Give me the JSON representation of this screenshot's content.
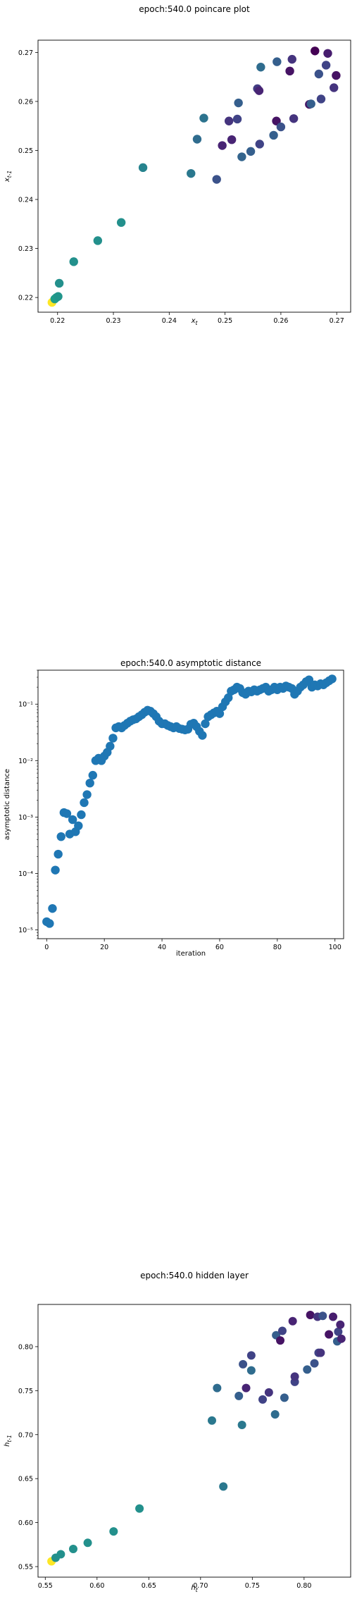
{
  "chart_data": [
    {
      "type": "scatter",
      "title": "epoch:540.0 poincare plot",
      "xlabel": "x_t",
      "ylabel": "x_{t-1}",
      "xlim": [
        0.2165,
        0.2725
      ],
      "ylim": [
        0.217,
        0.2725
      ],
      "log_y": false,
      "xticks": [
        0.22,
        0.23,
        0.24,
        0.25,
        0.26,
        0.27
      ],
      "yticks": [
        0.22,
        0.23,
        0.24,
        0.25,
        0.26,
        0.27
      ],
      "xtick_labels": [
        "0.22",
        "0.23",
        "0.24",
        "0.25",
        "0.26",
        "0.27"
      ],
      "ytick_labels": [
        "0.22",
        "0.23",
        "0.24",
        "0.25",
        "0.26",
        "0.27"
      ],
      "colormap": "viridis",
      "points": [
        {
          "x": 0.219,
          "y": 0.219,
          "c": 1.0
        },
        {
          "x": 0.2195,
          "y": 0.2197,
          "c": 0.55
        },
        {
          "x": 0.2198,
          "y": 0.22,
          "c": 0.55
        },
        {
          "x": 0.2201,
          "y": 0.2202,
          "c": 0.52
        },
        {
          "x": 0.2203,
          "y": 0.2229,
          "c": 0.5
        },
        {
          "x": 0.2229,
          "y": 0.2273,
          "c": 0.5
        },
        {
          "x": 0.2272,
          "y": 0.2316,
          "c": 0.5
        },
        {
          "x": 0.2314,
          "y": 0.2353,
          "c": 0.5
        },
        {
          "x": 0.2353,
          "y": 0.2465,
          "c": 0.45
        },
        {
          "x": 0.2439,
          "y": 0.2453,
          "c": 0.4
        },
        {
          "x": 0.245,
          "y": 0.2523,
          "c": 0.35
        },
        {
          "x": 0.2462,
          "y": 0.2566,
          "c": 0.38
        },
        {
          "x": 0.2485,
          "y": 0.2441,
          "c": 0.25
        },
        {
          "x": 0.2495,
          "y": 0.251,
          "c": 0.1
        },
        {
          "x": 0.2507,
          "y": 0.256,
          "c": 0.15
        },
        {
          "x": 0.2512,
          "y": 0.2522,
          "c": 0.1
        },
        {
          "x": 0.2522,
          "y": 0.2564,
          "c": 0.2
        },
        {
          "x": 0.2524,
          "y": 0.2597,
          "c": 0.3
        },
        {
          "x": 0.253,
          "y": 0.2487,
          "c": 0.32
        },
        {
          "x": 0.2546,
          "y": 0.2498,
          "c": 0.3
        },
        {
          "x": 0.2558,
          "y": 0.2626,
          "c": 0.18
        },
        {
          "x": 0.2561,
          "y": 0.2622,
          "c": 0.1
        },
        {
          "x": 0.2562,
          "y": 0.2513,
          "c": 0.2
        },
        {
          "x": 0.2564,
          "y": 0.267,
          "c": 0.35
        },
        {
          "x": 0.2587,
          "y": 0.2531,
          "c": 0.3
        },
        {
          "x": 0.2592,
          "y": 0.256,
          "c": 0.05
        },
        {
          "x": 0.2593,
          "y": 0.2681,
          "c": 0.3
        },
        {
          "x": 0.26,
          "y": 0.2548,
          "c": 0.25
        },
        {
          "x": 0.2616,
          "y": 0.2662,
          "c": 0.05
        },
        {
          "x": 0.262,
          "y": 0.2686,
          "c": 0.15
        },
        {
          "x": 0.2623,
          "y": 0.2565,
          "c": 0.15
        },
        {
          "x": 0.2651,
          "y": 0.2594,
          "c": 0.05
        },
        {
          "x": 0.2654,
          "y": 0.2595,
          "c": 0.3
        },
        {
          "x": 0.2661,
          "y": 0.2703,
          "c": 0.0
        },
        {
          "x": 0.2668,
          "y": 0.2656,
          "c": 0.25
        },
        {
          "x": 0.2672,
          "y": 0.2605,
          "c": 0.2
        },
        {
          "x": 0.2681,
          "y": 0.2674,
          "c": 0.2
        },
        {
          "x": 0.2684,
          "y": 0.2698,
          "c": 0.08
        },
        {
          "x": 0.2695,
          "y": 0.2628,
          "c": 0.15
        },
        {
          "x": 0.2699,
          "y": 0.2653,
          "c": 0.05
        }
      ]
    },
    {
      "type": "scatter",
      "title": "epoch:540.0 asymptotic distance",
      "xlabel": "iteration",
      "ylabel": "asymptotic distance",
      "xlim": [
        -3,
        103
      ],
      "ylim": [
        7e-06,
        0.4
      ],
      "log_y": true,
      "xticks": [
        0,
        20,
        40,
        60,
        80,
        100
      ],
      "xtick_labels": [
        "0",
        "20",
        "40",
        "60",
        "80",
        "100"
      ],
      "yticks": [
        1e-05,
        0.0001,
        0.001,
        0.01,
        0.1
      ],
      "ytick_labels": [
        "10⁻⁵",
        "10⁻⁴",
        "10⁻³",
        "10⁻²",
        "10⁻¹"
      ],
      "color": "#1f77b4",
      "x": [
        0,
        1,
        2,
        3,
        4,
        5,
        6,
        7,
        8,
        9,
        10,
        11,
        12,
        13,
        14,
        15,
        16,
        17,
        18,
        19,
        20,
        21,
        22,
        23,
        24,
        25,
        26,
        27,
        28,
        29,
        30,
        31,
        32,
        33,
        34,
        35,
        36,
        37,
        38,
        39,
        40,
        41,
        42,
        43,
        44,
        45,
        46,
        47,
        48,
        49,
        50,
        51,
        52,
        53,
        54,
        55,
        56,
        57,
        58,
        59,
        60,
        61,
        62,
        63,
        64,
        65,
        66,
        67,
        68,
        69,
        70,
        71,
        72,
        73,
        74,
        75,
        76,
        77,
        78,
        79,
        80,
        81,
        82,
        83,
        84,
        85,
        86,
        87,
        88,
        89,
        90,
        91,
        92,
        93,
        94,
        95,
        96,
        97,
        98,
        99
      ],
      "y": [
        1.4e-05,
        1.3e-05,
        2.4e-05,
        0.000115,
        0.00022,
        0.00045,
        0.0012,
        0.00115,
        0.0005,
        0.0009,
        0.00055,
        0.0007,
        0.0011,
        0.0018,
        0.0025,
        0.004,
        0.0055,
        0.01,
        0.011,
        0.01,
        0.012,
        0.014,
        0.018,
        0.025,
        0.038,
        0.04,
        0.038,
        0.042,
        0.046,
        0.05,
        0.053,
        0.055,
        0.06,
        0.065,
        0.072,
        0.078,
        0.075,
        0.068,
        0.06,
        0.05,
        0.045,
        0.045,
        0.042,
        0.04,
        0.038,
        0.04,
        0.037,
        0.036,
        0.035,
        0.036,
        0.044,
        0.046,
        0.04,
        0.033,
        0.028,
        0.045,
        0.06,
        0.065,
        0.07,
        0.075,
        0.068,
        0.09,
        0.11,
        0.13,
        0.17,
        0.18,
        0.2,
        0.19,
        0.16,
        0.15,
        0.17,
        0.165,
        0.18,
        0.17,
        0.18,
        0.19,
        0.2,
        0.17,
        0.18,
        0.2,
        0.18,
        0.2,
        0.19,
        0.21,
        0.2,
        0.19,
        0.15,
        0.17,
        0.2,
        0.22,
        0.25,
        0.27,
        0.2,
        0.22,
        0.21,
        0.23,
        0.22,
        0.24,
        0.26,
        0.28
      ]
    },
    {
      "type": "scatter",
      "title": "epoch:540.0 hidden layer",
      "xlabel": "h_t",
      "ylabel": "h_{t-1}",
      "xlim": [
        0.543,
        0.845
      ],
      "ylim": [
        0.538,
        0.848
      ],
      "log_y": false,
      "xticks": [
        0.55,
        0.6,
        0.65,
        0.7,
        0.75,
        0.8
      ],
      "yticks": [
        0.55,
        0.6,
        0.65,
        0.7,
        0.75,
        0.8
      ],
      "xtick_labels": [
        "0.55",
        "0.60",
        "0.65",
        "0.70",
        "0.75",
        "0.80"
      ],
      "ytick_labels": [
        "0.55",
        "0.60",
        "0.65",
        "0.70",
        "0.75",
        "0.80"
      ],
      "colormap": "viridis",
      "points": [
        {
          "x": 0.556,
          "y": 0.556,
          "c": 1.0
        },
        {
          "x": 0.56,
          "y": 0.56,
          "c": 0.5
        },
        {
          "x": 0.565,
          "y": 0.564,
          "c": 0.5
        },
        {
          "x": 0.577,
          "y": 0.57,
          "c": 0.5
        },
        {
          "x": 0.591,
          "y": 0.577,
          "c": 0.5
        },
        {
          "x": 0.616,
          "y": 0.59,
          "c": 0.5
        },
        {
          "x": 0.641,
          "y": 0.616,
          "c": 0.5
        },
        {
          "x": 0.711,
          "y": 0.716,
          "c": 0.4
        },
        {
          "x": 0.716,
          "y": 0.753,
          "c": 0.35
        },
        {
          "x": 0.722,
          "y": 0.641,
          "c": 0.4
        },
        {
          "x": 0.737,
          "y": 0.744,
          "c": 0.3
        },
        {
          "x": 0.74,
          "y": 0.711,
          "c": 0.4
        },
        {
          "x": 0.741,
          "y": 0.78,
          "c": 0.25
        },
        {
          "x": 0.744,
          "y": 0.753,
          "c": 0.1
        },
        {
          "x": 0.749,
          "y": 0.79,
          "c": 0.2
        },
        {
          "x": 0.749,
          "y": 0.773,
          "c": 0.35
        },
        {
          "x": 0.76,
          "y": 0.74,
          "c": 0.2
        },
        {
          "x": 0.766,
          "y": 0.748,
          "c": 0.15
        },
        {
          "x": 0.772,
          "y": 0.723,
          "c": 0.35
        },
        {
          "x": 0.773,
          "y": 0.813,
          "c": 0.3
        },
        {
          "x": 0.777,
          "y": 0.807,
          "c": 0.05
        },
        {
          "x": 0.779,
          "y": 0.818,
          "c": 0.2
        },
        {
          "x": 0.781,
          "y": 0.742,
          "c": 0.3
        },
        {
          "x": 0.789,
          "y": 0.829,
          "c": 0.1
        },
        {
          "x": 0.791,
          "y": 0.76,
          "c": 0.2
        },
        {
          "x": 0.791,
          "y": 0.766,
          "c": 0.15
        },
        {
          "x": 0.803,
          "y": 0.774,
          "c": 0.3
        },
        {
          "x": 0.806,
          "y": 0.836,
          "c": 0.05
        },
        {
          "x": 0.81,
          "y": 0.781,
          "c": 0.25
        },
        {
          "x": 0.813,
          "y": 0.834,
          "c": 0.15
        },
        {
          "x": 0.814,
          "y": 0.793,
          "c": 0.2
        },
        {
          "x": 0.818,
          "y": 0.835,
          "c": 0.25
        },
        {
          "x": 0.824,
          "y": 0.814,
          "c": 0.05
        },
        {
          "x": 0.828,
          "y": 0.834,
          "c": 0.08
        },
        {
          "x": 0.832,
          "y": 0.806,
          "c": 0.3
        },
        {
          "x": 0.833,
          "y": 0.817,
          "c": 0.2
        },
        {
          "x": 0.835,
          "y": 0.825,
          "c": 0.1
        },
        {
          "x": 0.836,
          "y": 0.809,
          "c": 0.1
        },
        {
          "x": 0.816,
          "y": 0.793,
          "c": 0.15
        }
      ]
    }
  ]
}
